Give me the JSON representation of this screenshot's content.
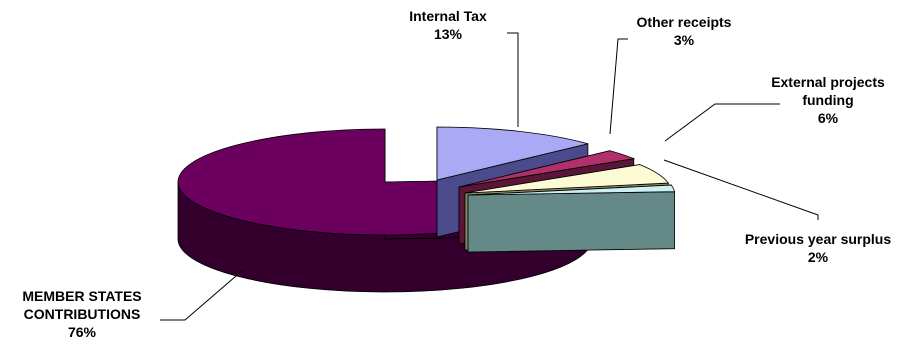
{
  "chart_data": {
    "type": "pie",
    "style": "3d-exploded",
    "unit": "%",
    "slices": [
      {
        "label": "Internal Tax",
        "lines": [
          "Internal Tax"
        ],
        "value": 13,
        "pct_label": "13%",
        "top_color": "#a9a9f5",
        "side_color": "#4b4b8c"
      },
      {
        "label": "Other receipts",
        "lines": [
          "Other receipts"
        ],
        "value": 3,
        "pct_label": "3%",
        "top_color": "#b0306c",
        "side_color": "#5a1636"
      },
      {
        "label": "External projects funding",
        "lines": [
          "External projects",
          "funding"
        ],
        "value": 6,
        "pct_label": "6%",
        "top_color": "#fdfbd3",
        "side_color": "#8a8868"
      },
      {
        "label": "Previous year surplus",
        "lines": [
          "Previous year surplus"
        ],
        "value": 2,
        "pct_label": "2%",
        "top_color": "#cdeff2",
        "side_color": "#648986"
      },
      {
        "label": "MEMBER STATES CONTRIBUTIONS",
        "lines": [
          "MEMBER STATES",
          "CONTRIBUTIONS"
        ],
        "value": 76,
        "pct_label": "76%",
        "top_color": "#6b005f",
        "side_color": "#33002e"
      }
    ],
    "legend": "none",
    "label_position": "outside-with-leader-lines"
  }
}
